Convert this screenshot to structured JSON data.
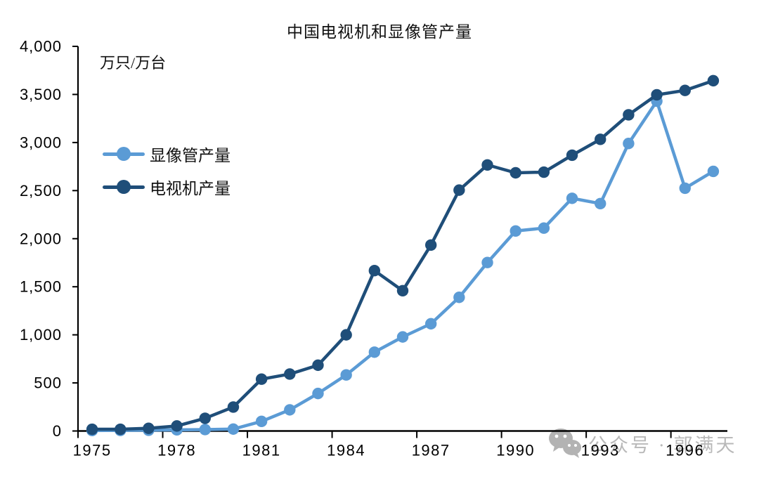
{
  "watermark": {
    "text": "公众号 · 郭满天",
    "icon": "wechat-icon",
    "color": "#b9b9b9"
  },
  "colors": {
    "axis": "#000000",
    "tick_label": "#000000",
    "background": "#ffffff"
  },
  "chart_data": {
    "type": "line",
    "title": "中国电视机和显像管产量",
    "ylabel": "万只/万台",
    "xlabel": "",
    "grid": false,
    "legend_position": "upper-left-inside",
    "ylim": [
      0,
      4000
    ],
    "x": [
      1975,
      1976,
      1977,
      1978,
      1979,
      1980,
      1981,
      1982,
      1983,
      1984,
      1985,
      1986,
      1987,
      1988,
      1989,
      1990,
      1991,
      1992,
      1993,
      1994,
      1995,
      1996,
      1997
    ],
    "x_tick_labels": [
      "1975",
      "1978",
      "1981",
      "1984",
      "1987",
      "1990",
      "1993",
      "1996"
    ],
    "y_ticks": [
      {
        "value": 0,
        "label": "0"
      },
      {
        "value": 500,
        "label": "500"
      },
      {
        "value": 1000,
        "label": "1,000"
      },
      {
        "value": 1500,
        "label": "1,500"
      },
      {
        "value": 2000,
        "label": "2,000"
      },
      {
        "value": 2500,
        "label": "2,500"
      },
      {
        "value": 3000,
        "label": "3,000"
      },
      {
        "value": 3500,
        "label": "3,500"
      },
      {
        "value": 4000,
        "label": "4,000"
      }
    ],
    "series": [
      {
        "name": "显像管产量",
        "color": "#5B9BD5",
        "values": [
          5,
          6,
          8,
          12,
          15,
          20,
          100,
          220,
          390,
          583,
          820,
          978,
          1115,
          1390,
          1752,
          2080,
          2110,
          2420,
          2365,
          2990,
          3430,
          2525,
          2700
        ]
      },
      {
        "name": "电视机产量",
        "color": "#1F4E79",
        "values": [
          18,
          18,
          28,
          52,
          132,
          249,
          539,
          592,
          684,
          1000,
          1668,
          1459,
          1934,
          2505,
          2767,
          2685,
          2692,
          2868,
          3033,
          3288,
          3496,
          3542,
          3643
        ]
      }
    ]
  }
}
